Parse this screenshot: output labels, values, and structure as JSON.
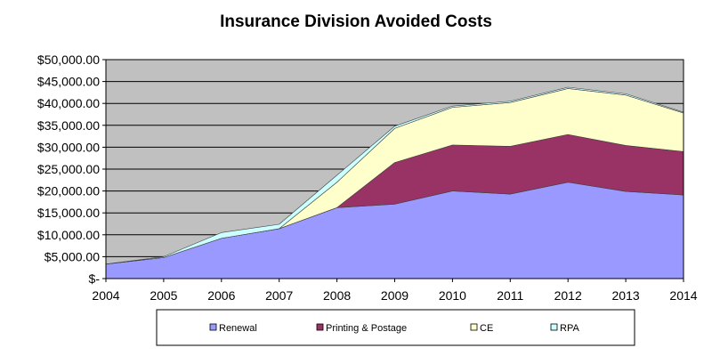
{
  "chart_data": {
    "type": "area",
    "stacked": true,
    "title": "Insurance Division Avoided Costs",
    "xlabel": "",
    "ylabel": "",
    "categories": [
      "2004",
      "2005",
      "2006",
      "2007",
      "2008",
      "2009",
      "2010",
      "2011",
      "2012",
      "2013",
      "2014"
    ],
    "ylim": [
      0,
      50000
    ],
    "yticks": [
      0,
      5000,
      10000,
      15000,
      20000,
      25000,
      30000,
      35000,
      40000,
      45000,
      50000
    ],
    "ytick_labels": [
      "$-",
      "$5,000.00",
      "$10,000.00",
      "$15,000.00",
      "$20,000.00",
      "$25,000.00",
      "$30,000.00",
      "$35,000.00",
      "$40,000.00",
      "$45,000.00",
      "$50,000.00"
    ],
    "grid": true,
    "legend_position": "bottom",
    "series": [
      {
        "name": "Renewal",
        "color": "#9999ff",
        "values": [
          3300,
          4800,
          9200,
          11400,
          16200,
          17000,
          20000,
          19300,
          22000,
          19900,
          19100
        ]
      },
      {
        "name": "Printing & Postage",
        "color": "#993366",
        "values": [
          0,
          0,
          0,
          0,
          0,
          9500,
          10500,
          10900,
          10900,
          10500,
          9900
        ]
      },
      {
        "name": "CE",
        "color": "#ffffcc",
        "values": [
          0,
          0,
          0,
          0,
          5800,
          7800,
          8600,
          10000,
          10500,
          11500,
          8800
        ]
      },
      {
        "name": "RPA",
        "color": "#ccffff",
        "values": [
          0,
          200,
          1300,
          1000,
          1600,
          500,
          300,
          300,
          300,
          300,
          200
        ]
      }
    ],
    "colors": {
      "plot_background": "#c0c0c0",
      "gridline": "#000000",
      "axis": "#000000"
    }
  }
}
